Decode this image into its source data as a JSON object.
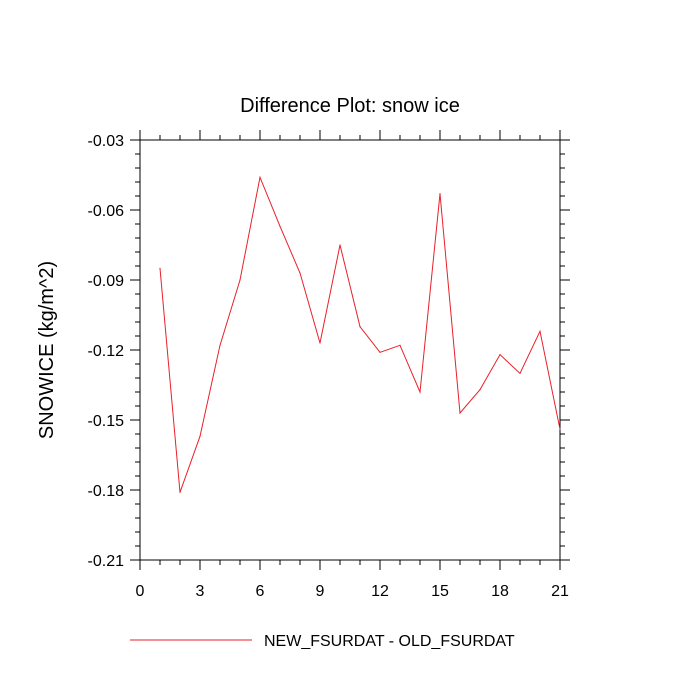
{
  "chart_data": {
    "type": "line",
    "title": "Difference Plot: snow ice",
    "xlabel": "",
    "ylabel": "SNOWICE  (kg/m^2)",
    "xlim": [
      0,
      21
    ],
    "ylim": [
      -0.21,
      -0.03
    ],
    "x_ticks": [
      0,
      3,
      6,
      9,
      12,
      15,
      18,
      21
    ],
    "x_tick_labels": [
      "0",
      "3",
      "6",
      "9",
      "12",
      "15",
      "18",
      "21"
    ],
    "y_ticks": [
      -0.03,
      -0.06,
      -0.09,
      -0.12,
      -0.15,
      -0.18,
      -0.21
    ],
    "y_tick_labels": [
      "-0.03",
      "-0.06",
      "-0.09",
      "-0.12",
      "-0.15",
      "-0.18",
      "-0.21"
    ],
    "grid": false,
    "legend_position": "bottom",
    "series": [
      {
        "name": "NEW_FSURDAT - OLD_FSURDAT",
        "color": "#e8202a",
        "x": [
          1,
          2,
          3,
          4,
          5,
          6,
          7,
          8,
          9,
          10,
          11,
          12,
          13,
          14,
          15,
          16,
          17,
          18,
          19,
          20,
          21
        ],
        "values": [
          -0.085,
          -0.181,
          -0.157,
          -0.118,
          -0.09,
          -0.046,
          -0.067,
          -0.087,
          -0.117,
          -0.075,
          -0.11,
          -0.121,
          -0.118,
          -0.138,
          -0.053,
          -0.147,
          -0.137,
          -0.122,
          -0.13,
          -0.112,
          -0.154
        ]
      }
    ]
  }
}
